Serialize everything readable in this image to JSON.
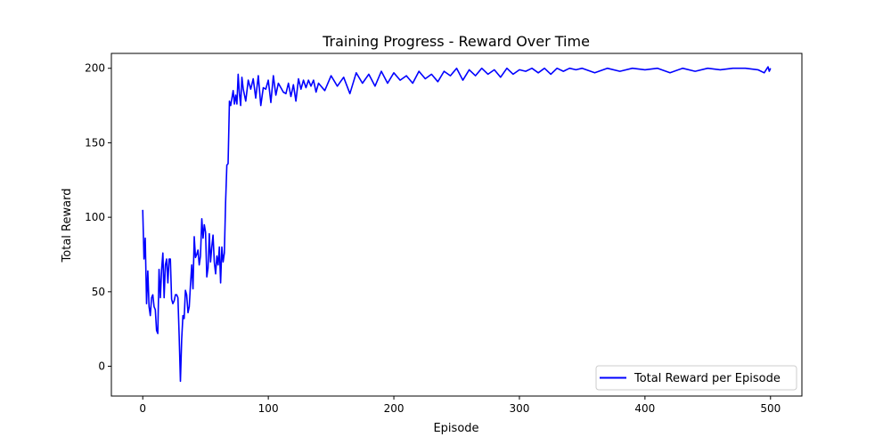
{
  "chart_data": {
    "type": "line",
    "title": "Training Progress - Reward Over Time",
    "xlabel": "Episode",
    "ylabel": "Total Reward",
    "xlim": [
      -25,
      525
    ],
    "ylim": [
      -20,
      210
    ],
    "x_ticks": [
      0,
      100,
      200,
      300,
      400,
      500
    ],
    "y_ticks": [
      0,
      50,
      100,
      150,
      200
    ],
    "x_tick_labels": [
      "0",
      "100",
      "200",
      "300",
      "400",
      "500"
    ],
    "y_tick_labels": [
      "0",
      "50",
      "100",
      "150",
      "200"
    ],
    "grid": false,
    "legend": {
      "position": "lower-right",
      "entries": [
        "Total Reward per Episode"
      ]
    },
    "series": [
      {
        "name": "Total Reward per Episode",
        "color": "#0000ff",
        "x": [
          0,
          1,
          2,
          3,
          4,
          5,
          6,
          7,
          8,
          9,
          10,
          11,
          12,
          13,
          14,
          15,
          16,
          17,
          18,
          19,
          20,
          21,
          22,
          23,
          24,
          25,
          26,
          27,
          28,
          29,
          30,
          31,
          32,
          33,
          34,
          35,
          36,
          37,
          38,
          39,
          40,
          41,
          42,
          43,
          44,
          45,
          46,
          47,
          48,
          49,
          50,
          51,
          52,
          53,
          54,
          55,
          56,
          57,
          58,
          59,
          60,
          61,
          62,
          63,
          64,
          65,
          66,
          67,
          68,
          69,
          70,
          71,
          72,
          73,
          74,
          75,
          76,
          77,
          78,
          79,
          80,
          82,
          84,
          86,
          88,
          90,
          92,
          94,
          96,
          98,
          100,
          102,
          104,
          106,
          108,
          110,
          112,
          114,
          116,
          118,
          120,
          122,
          124,
          126,
          128,
          130,
          132,
          134,
          136,
          138,
          140,
          145,
          150,
          155,
          160,
          165,
          170,
          175,
          180,
          185,
          190,
          195,
          200,
          205,
          210,
          215,
          220,
          225,
          230,
          235,
          240,
          245,
          250,
          255,
          260,
          265,
          270,
          275,
          280,
          285,
          290,
          295,
          300,
          305,
          310,
          315,
          320,
          325,
          330,
          335,
          340,
          345,
          350,
          360,
          370,
          380,
          390,
          400,
          410,
          420,
          430,
          440,
          450,
          460,
          470,
          480,
          490,
          495,
          498,
          499,
          500
        ],
        "y": [
          105,
          72,
          86,
          42,
          64,
          40,
          34,
          46,
          48,
          40,
          38,
          24,
          22,
          65,
          46,
          65,
          76,
          46,
          68,
          72,
          56,
          72,
          72,
          45,
          42,
          44,
          48,
          48,
          46,
          20,
          -10,
          18,
          34,
          32,
          51,
          48,
          36,
          40,
          55,
          68,
          52,
          87,
          73,
          75,
          78,
          68,
          74,
          99,
          86,
          95,
          90,
          60,
          66,
          89,
          70,
          80,
          88,
          70,
          62,
          74,
          68,
          80,
          56,
          80,
          70,
          76,
          110,
          135,
          136,
          178,
          175,
          180,
          185,
          176,
          182,
          176,
          196,
          183,
          175,
          194,
          186,
          178,
          192,
          186,
          193,
          180,
          195,
          175,
          187,
          186,
          192,
          177,
          195,
          182,
          190,
          187,
          184,
          183,
          190,
          181,
          189,
          178,
          193,
          186,
          192,
          187,
          192,
          188,
          192,
          184,
          190,
          185,
          195,
          188,
          194,
          183,
          197,
          190,
          196,
          188,
          198,
          190,
          197,
          192,
          195,
          190,
          198,
          193,
          196,
          191,
          198,
          195,
          200,
          192,
          199,
          195,
          200,
          196,
          199,
          194,
          200,
          196,
          199,
          198,
          200,
          197,
          200,
          196,
          200,
          198,
          200,
          199,
          200,
          197,
          200,
          198,
          200,
          199,
          200,
          197,
          200,
          198,
          200,
          199,
          200,
          200,
          199,
          197,
          201,
          198,
          200
        ]
      }
    ]
  }
}
